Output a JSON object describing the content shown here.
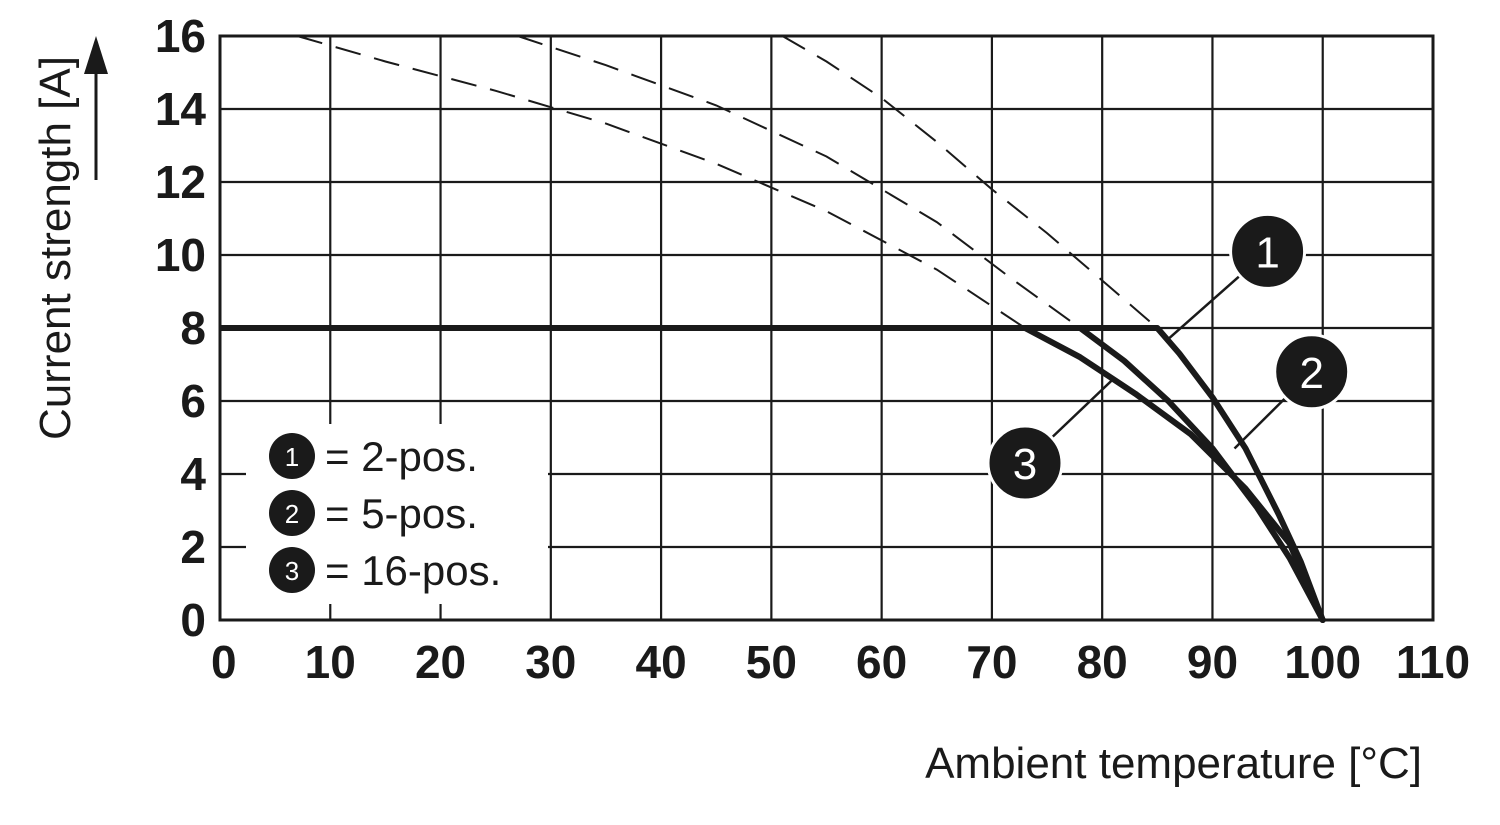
{
  "chart_data": {
    "type": "line",
    "xlabel": "Ambient temperature [°C]",
    "ylabel": "Current strength [A]",
    "xlim": [
      0,
      110
    ],
    "ylim": [
      0,
      16
    ],
    "x_ticks": [
      0,
      10,
      20,
      30,
      40,
      50,
      60,
      70,
      80,
      90,
      100,
      110
    ],
    "y_ticks": [
      0,
      2,
      4,
      6,
      8,
      10,
      12,
      14,
      16
    ],
    "grid": true,
    "legend_position": "bottom-left",
    "legend": [
      {
        "marker": "1",
        "text": "= 2-pos."
      },
      {
        "marker": "2",
        "text": "= 5-pos."
      },
      {
        "marker": "3",
        "text": "= 16-pos."
      }
    ],
    "rated_current_line": {
      "x": [
        0,
        85
      ],
      "y": [
        8,
        8
      ]
    },
    "series": [
      {
        "name": "1",
        "solid": {
          "x": [
            85,
            87,
            90,
            93,
            96,
            98,
            100
          ],
          "y": [
            8,
            7.3,
            6.1,
            4.7,
            2.9,
            1.6,
            0
          ]
        },
        "dashed": {
          "x": [
            51,
            55,
            60,
            65,
            70,
            75,
            80,
            85
          ],
          "y": [
            16,
            15.3,
            14.3,
            13.1,
            11.8,
            10.6,
            9.3,
            8
          ]
        }
      },
      {
        "name": "2",
        "solid": {
          "x": [
            78,
            82,
            86,
            90,
            94,
            97,
            100
          ],
          "y": [
            8,
            7.1,
            6.0,
            4.7,
            3.1,
            1.7,
            0
          ]
        },
        "dashed": {
          "x": [
            27,
            35,
            45,
            55,
            65,
            72,
            78
          ],
          "y": [
            16,
            15.2,
            14.1,
            12.7,
            10.9,
            9.3,
            8
          ]
        }
      },
      {
        "name": "3",
        "solid": {
          "x": [
            73,
            78,
            83,
            88,
            93,
            97,
            100
          ],
          "y": [
            8,
            7.2,
            6.2,
            5.1,
            3.6,
            2.1,
            0
          ]
        },
        "dashed": {
          "x": [
            7,
            15,
            25,
            35,
            45,
            55,
            65,
            73
          ],
          "y": [
            16,
            15.3,
            14.5,
            13.6,
            12.5,
            11.2,
            9.6,
            8
          ]
        }
      }
    ],
    "callouts": [
      {
        "label": "1",
        "tip": [
          86,
          7.7
        ],
        "badge": [
          95,
          10.1
        ]
      },
      {
        "label": "2",
        "tip": [
          92,
          4.7
        ],
        "badge": [
          99,
          6.8
        ]
      },
      {
        "label": "3",
        "tip": [
          81,
          6.6
        ],
        "badge": [
          73,
          4.3
        ]
      }
    ]
  }
}
